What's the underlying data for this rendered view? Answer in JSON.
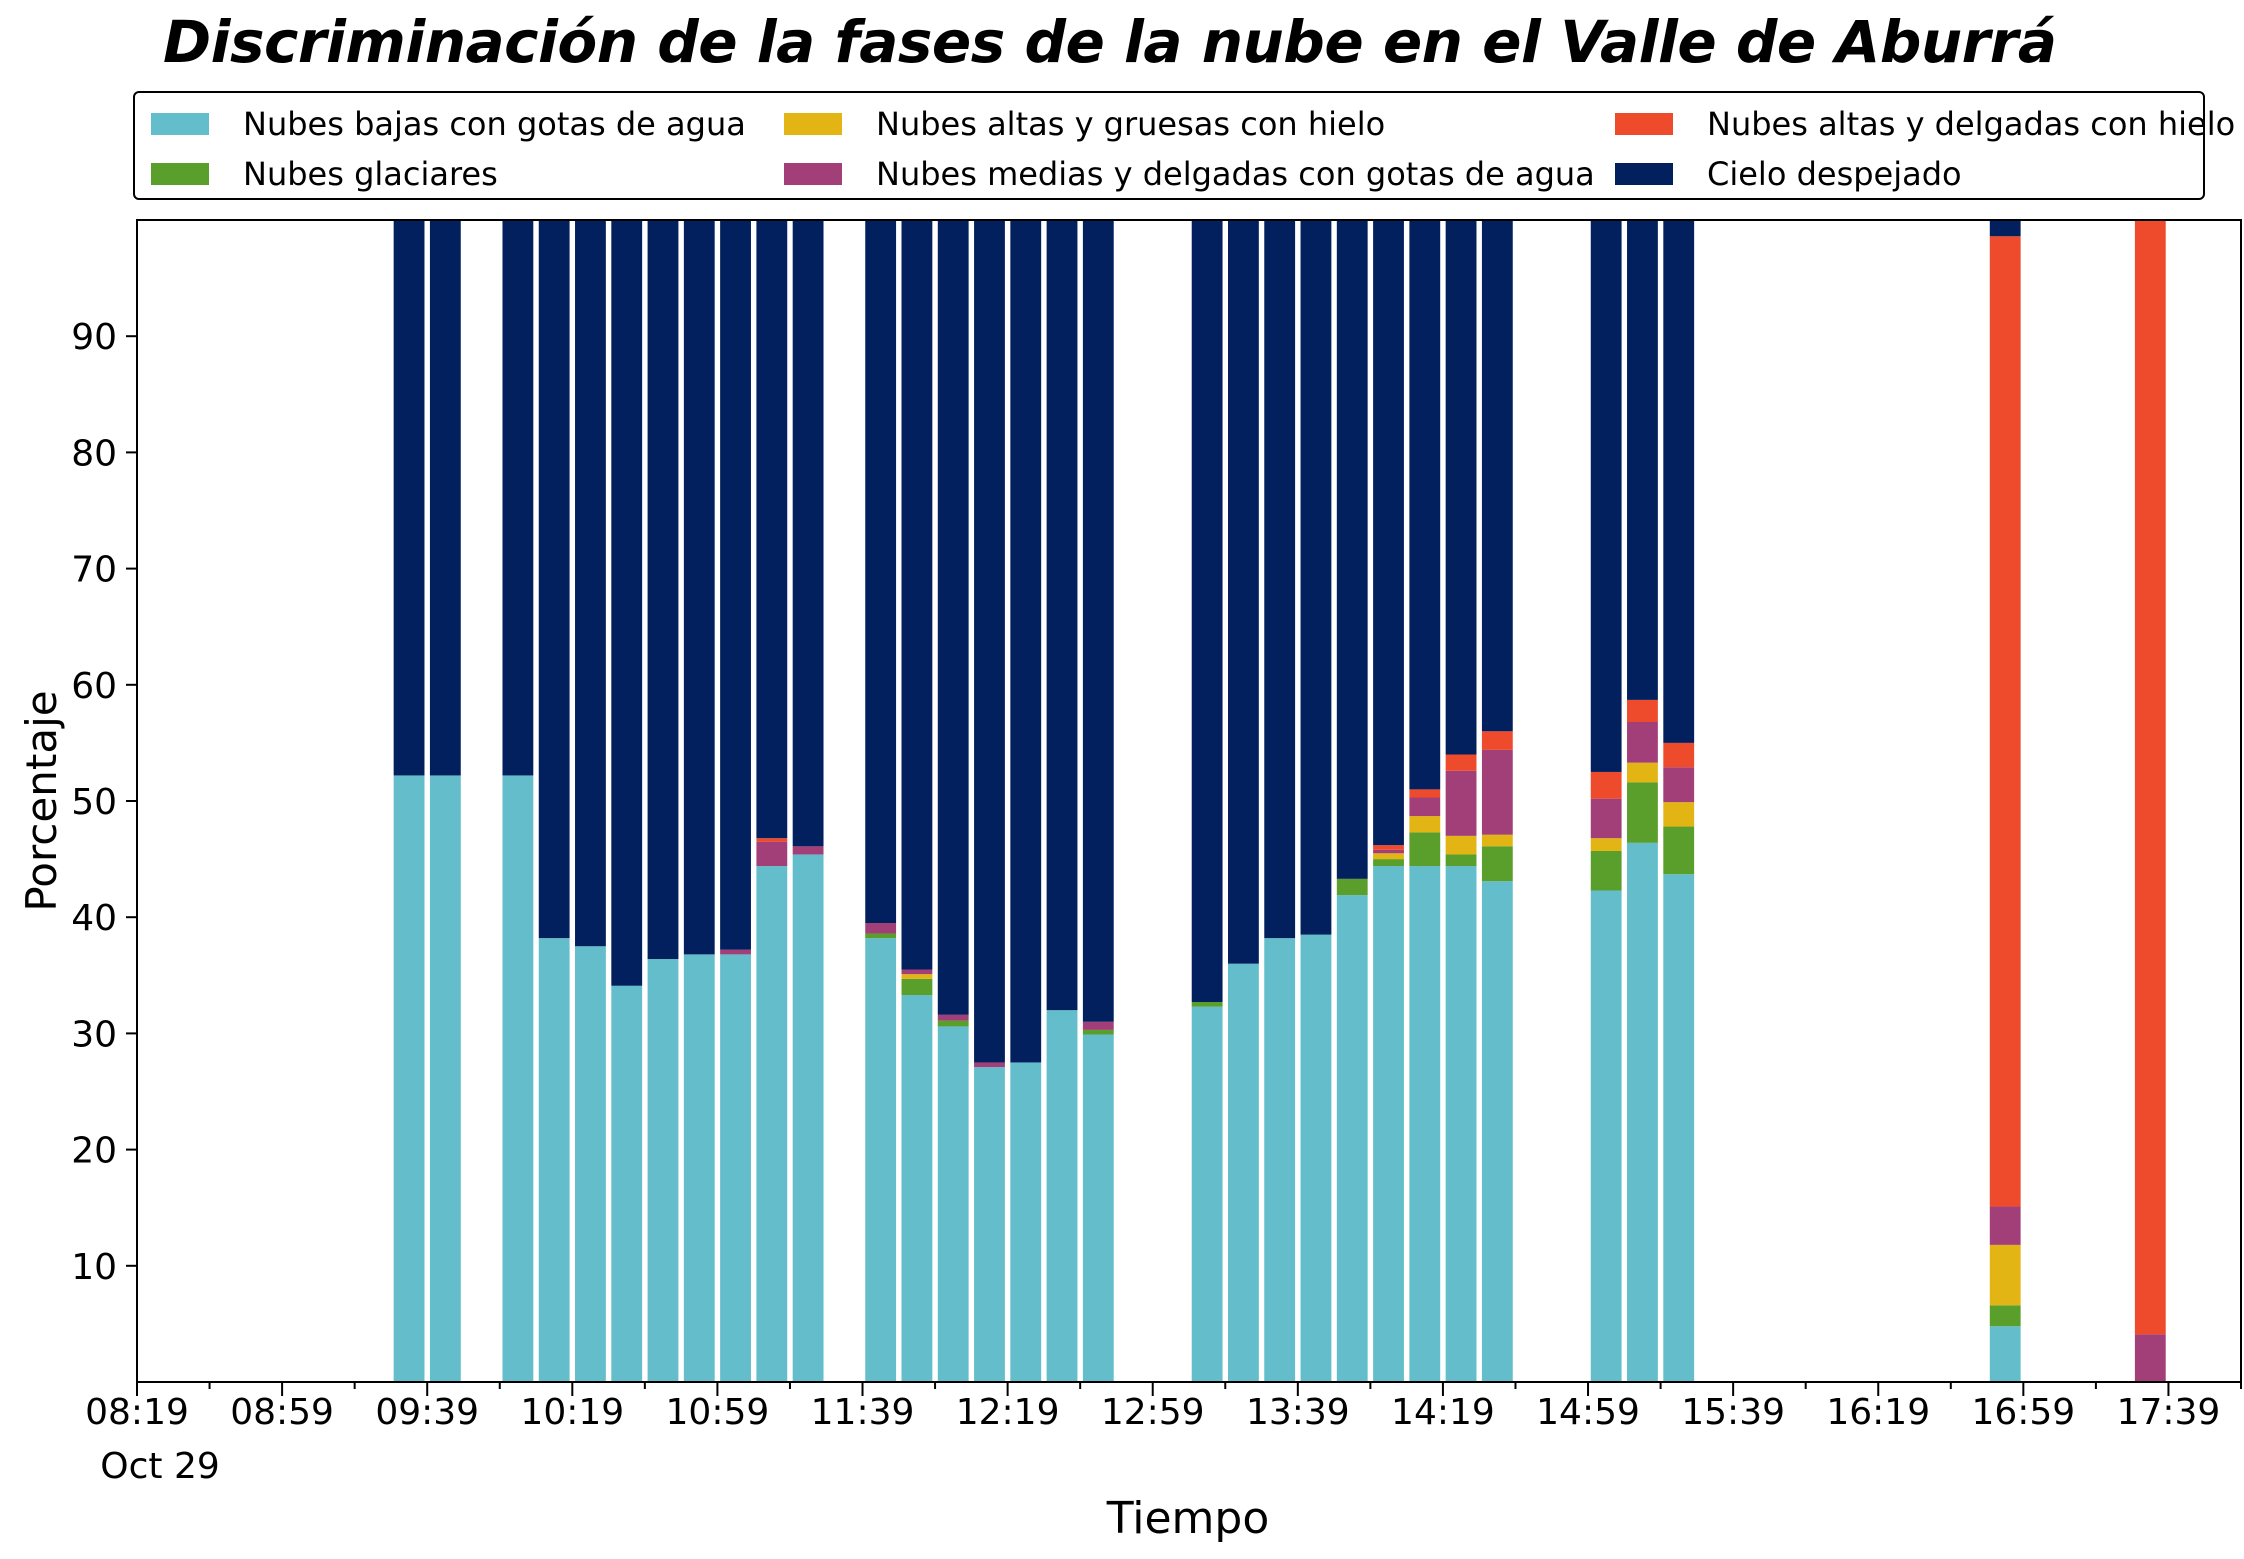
{
  "chart_data": {
    "type": "bar",
    "stacked": true,
    "title": "Discriminación de la fases de la nube en el Valle de Aburrá",
    "xlabel": "Tiempo",
    "ylabel": "Porcentaje",
    "ylim": [
      0,
      100
    ],
    "yticks": [
      10,
      20,
      30,
      40,
      50,
      60,
      70,
      80,
      90
    ],
    "x_start": "08:19",
    "x_end": "17:59",
    "x_date_label": "Oct 29",
    "xticks": [
      "08:19",
      "08:59",
      "09:39",
      "10:19",
      "10:59",
      "11:39",
      "12:19",
      "12:59",
      "13:39",
      "14:19",
      "14:59",
      "15:39",
      "16:19",
      "16:59",
      "17:39"
    ],
    "legend_position": "top, above plot, 3 columns",
    "grid": false,
    "categories": [
      "09:34",
      "09:44",
      "10:04",
      "10:14",
      "10:24",
      "10:34",
      "10:44",
      "10:54",
      "11:04",
      "11:14",
      "11:24",
      "11:44",
      "11:54",
      "12:04",
      "12:14",
      "12:24",
      "12:34",
      "12:44",
      "13:14",
      "13:24",
      "13:34",
      "13:44",
      "13:54",
      "14:04",
      "14:14",
      "14:24",
      "14:34",
      "14:44",
      "15:04",
      "15:14",
      "15:24",
      "16:54",
      "17:34"
    ],
    "series": [
      {
        "name": "Nubes bajas con gotas de agua",
        "color": "#64BDCA",
        "values": [
          52.2,
          52.2,
          52.2,
          38.2,
          37.5,
          34.1,
          36.4,
          36.8,
          36.8,
          44.4,
          45.4,
          38.2,
          33.3,
          30.6,
          27.1,
          27.5,
          32.0,
          29.9,
          32.3,
          36.0,
          38.2,
          38.5,
          41.9,
          44.4,
          44.4,
          44.4,
          43.1,
          0,
          42.3,
          46.4,
          43.7,
          4.8,
          0
        ]
      },
      {
        "name": "Nubes glaciares",
        "color": "#5A9E2B",
        "values": [
          0,
          0,
          0,
          0,
          0,
          0,
          0,
          0,
          0,
          0,
          0,
          0.4,
          1.4,
          0.5,
          0,
          0,
          0,
          0.4,
          0.4,
          0,
          0,
          0,
          1.4,
          0.6,
          2.9,
          1.0,
          3.0,
          0,
          3.4,
          5.2,
          4.1,
          1.8,
          0
        ]
      },
      {
        "name": "Nubes altas y gruesas con hielo",
        "color": "#E2B414",
        "values": [
          0,
          0,
          0,
          0,
          0,
          0,
          0,
          0,
          0,
          0,
          0,
          0,
          0.4,
          0,
          0,
          0,
          0,
          0,
          0,
          0,
          0,
          0,
          0,
          0.5,
          1.4,
          1.6,
          1.0,
          0,
          1.1,
          1.7,
          2.1,
          5.2,
          0
        ]
      },
      {
        "name": "Nubes medias y delgadas con gotas de agua",
        "color": "#A23F78",
        "values": [
          0,
          0,
          0,
          0,
          0,
          0,
          0,
          0,
          0.4,
          2.1,
          0.7,
          0.9,
          0.4,
          0.5,
          0.4,
          0,
          0,
          0.7,
          0,
          0,
          0,
          0,
          0,
          0.3,
          1.6,
          5.6,
          7.3,
          0,
          3.4,
          3.5,
          3.0,
          3.3,
          4.1
        ]
      },
      {
        "name": "Nubes altas y delgadas con hielo",
        "color": "#EE4A2C",
        "values": [
          0,
          0,
          0,
          0,
          0,
          0,
          0,
          0,
          0,
          0.3,
          0,
          0,
          0,
          0,
          0,
          0,
          0,
          0,
          0,
          0,
          0,
          0,
          0,
          0.4,
          0.7,
          1.4,
          1.6,
          0,
          2.3,
          1.9,
          2.1,
          83.5,
          95.9
        ]
      },
      {
        "name": "Cielo despejado",
        "color": "#03205E",
        "values": [
          47.8,
          47.8,
          47.8,
          61.8,
          62.5,
          65.9,
          63.6,
          63.2,
          62.8,
          53.2,
          53.9,
          60.5,
          64.5,
          68.4,
          72.5,
          72.5,
          68.0,
          69.0,
          67.3,
          64.0,
          61.8,
          61.5,
          56.7,
          53.8,
          49.0,
          46.0,
          44.0,
          0,
          47.5,
          41.3,
          45.0,
          1.4,
          0
        ]
      }
    ]
  }
}
